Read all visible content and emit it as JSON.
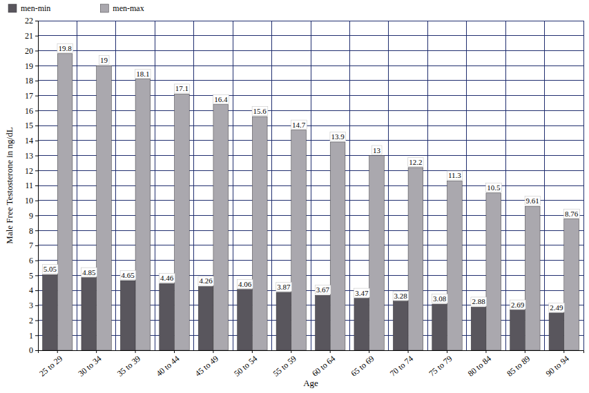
{
  "chart_data": {
    "type": "bar",
    "x_label": "Age",
    "y_label": "Male Free Testosterone in ng/dL",
    "categories": [
      "25 to 29",
      "30 to 34",
      "35 to 39",
      "40 to 44",
      "45 to 49",
      "50 to 54",
      "55 to 59",
      "60 to 64",
      "65 to 69",
      "70 to 74",
      "75 to 79",
      "80 to 84",
      "85 to 89",
      "90 to 94"
    ],
    "series": [
      {
        "name": "men-min",
        "color": "#59565d",
        "values": [
          5.05,
          4.85,
          4.65,
          4.46,
          4.26,
          4.06,
          3.87,
          3.67,
          3.47,
          3.28,
          3.08,
          2.88,
          2.69,
          2.49
        ]
      },
      {
        "name": "men-max",
        "color": "#aaa8ae",
        "values": [
          19.8,
          19,
          18.1,
          17.1,
          16.4,
          15.6,
          14.7,
          13.9,
          13,
          12.2,
          11.3,
          10.5,
          9.61,
          8.76
        ]
      }
    ],
    "ylim": [
      0,
      22
    ],
    "yticks": [
      0,
      1,
      2,
      3,
      4,
      5,
      6,
      7,
      8,
      9,
      10,
      11,
      12,
      13,
      14,
      15,
      16,
      17,
      18,
      19,
      20,
      21,
      22
    ],
    "grid": true,
    "legend": "top-left",
    "data_labels": true
  }
}
